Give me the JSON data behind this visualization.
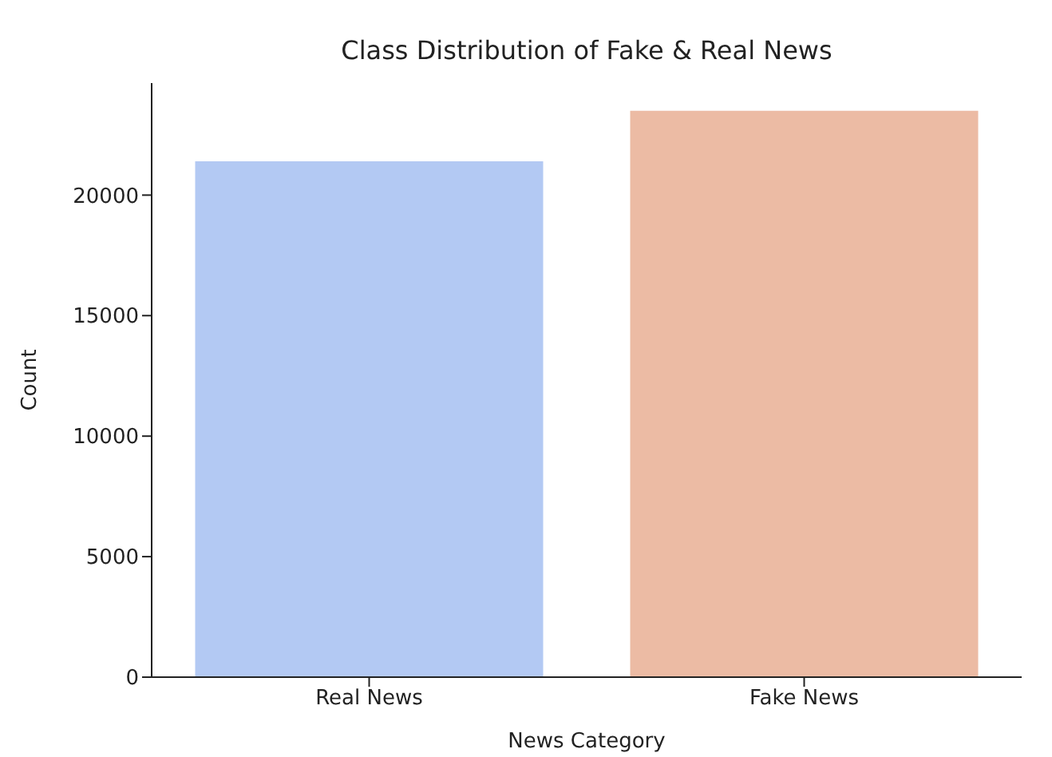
{
  "chart_data": {
    "type": "bar",
    "title": "Class Distribution of Fake & Real News",
    "xlabel": "News Category",
    "ylabel": "Count",
    "categories": [
      "Real News",
      "Fake News"
    ],
    "values": [
      21400,
      23500
    ],
    "colors": [
      "#b3c9f3",
      "#ecbba4"
    ],
    "ylim": [
      0,
      24650
    ],
    "yticks": [
      0,
      5000,
      10000,
      15000,
      20000
    ],
    "grid": false
  }
}
